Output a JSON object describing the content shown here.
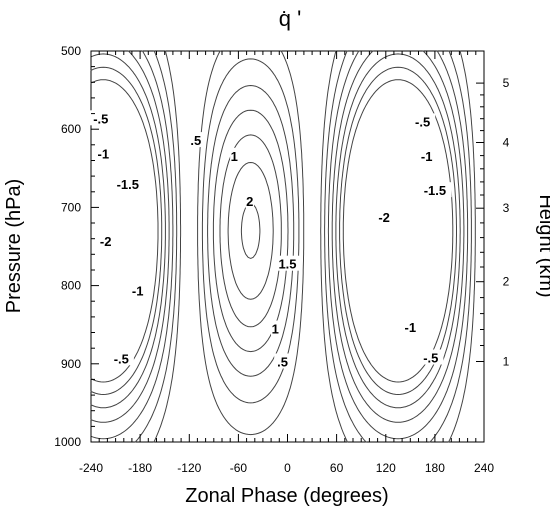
{
  "chart_data": {
    "type": "contour",
    "title": "q̇ '",
    "xlabel": "Zonal Phase (degrees)",
    "ylabel": "Pressure (hPa)",
    "y2label": "Height (km)",
    "xlim": [
      -240,
      240
    ],
    "ylim": [
      1000,
      500
    ],
    "x_ticks": [
      -240,
      -180,
      -120,
      -60,
      0,
      60,
      120,
      180,
      240
    ],
    "y_ticks": [
      500,
      600,
      700,
      800,
      900,
      1000
    ],
    "y2_ticks": [
      {
        "label": "1",
        "pressure": 897
      },
      {
        "label": "2",
        "pressure": 795
      },
      {
        "label": "3",
        "pressure": 701
      },
      {
        "label": "4",
        "pressure": 617
      },
      {
        "label": "5",
        "pressure": 541
      }
    ],
    "contour_interval": 0.25,
    "negative_contours_dashed": true,
    "extrema": [
      {
        "sign": "positive",
        "x": -45,
        "p": 730,
        "value": 2.15
      },
      {
        "sign": "negative",
        "x": 135,
        "p": 730,
        "value": -2.2
      },
      {
        "sign": "negative",
        "x": -225,
        "p": 730,
        "value": -2.2
      }
    ],
    "contour_labels": [
      {
        "text": ".5",
        "x": -112,
        "p": 614
      },
      {
        "text": "1",
        "x": -65,
        "p": 634
      },
      {
        "text": "2",
        "x": -46,
        "p": 692
      },
      {
        "text": "1.5",
        "x": 0,
        "p": 772
      },
      {
        "text": "1",
        "x": -15,
        "p": 855
      },
      {
        "text": ".5",
        "x": -6,
        "p": 897
      },
      {
        "text": "-.5",
        "x": -228,
        "p": 586
      },
      {
        "text": "-1",
        "x": -225,
        "p": 631
      },
      {
        "text": "-1.5",
        "x": -195,
        "p": 670
      },
      {
        "text": "-2",
        "x": -222,
        "p": 743
      },
      {
        "text": "-1",
        "x": -183,
        "p": 806
      },
      {
        "text": "-.5",
        "x": -203,
        "p": 893
      },
      {
        "text": "-.5",
        "x": 165,
        "p": 590
      },
      {
        "text": "-1",
        "x": 170,
        "p": 634
      },
      {
        "text": "-1.5",
        "x": 180,
        "p": 678
      },
      {
        "text": "-2",
        "x": 118,
        "p": 712
      },
      {
        "text": "-1",
        "x": 150,
        "p": 853
      },
      {
        "text": "-.5",
        "x": 175,
        "p": 892
      }
    ]
  }
}
